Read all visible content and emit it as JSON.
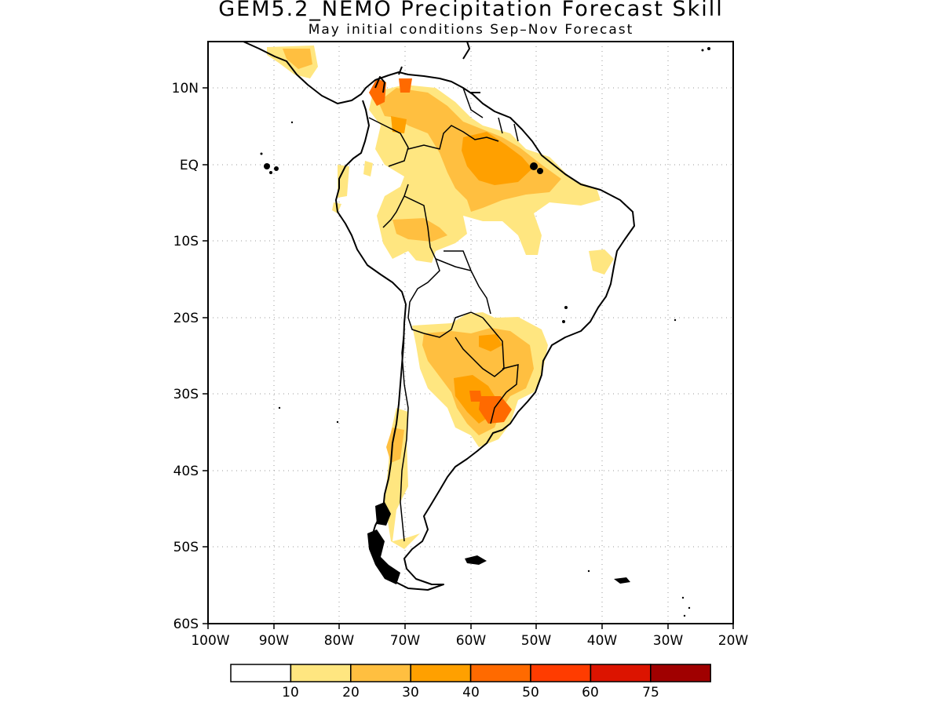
{
  "title": "GEM5.2_NEMO Precipitation Forecast Skill",
  "subtitle": "May initial conditions  Sep–Nov Forecast",
  "map": {
    "lon_range": [
      -100,
      -20
    ],
    "lat_range": [
      -60,
      15
    ],
    "grid": "dotted",
    "lon_ticks": [
      "100W",
      "90W",
      "80W",
      "70W",
      "60W",
      "50W",
      "40W",
      "30W",
      "20W"
    ],
    "lat_ticks": [
      "10N",
      "EQ",
      "10S",
      "20S",
      "30S",
      "40S",
      "50S",
      "60S"
    ]
  },
  "colorbar": {
    "labels": [
      "10",
      "20",
      "30",
      "40",
      "50",
      "60",
      "75"
    ],
    "colors": [
      "#ffffff",
      "#ffe680",
      "#ffbf40",
      "#ffa000",
      "#ff6a00",
      "#ff3c00",
      "#dc1400",
      "#a00000"
    ]
  }
}
